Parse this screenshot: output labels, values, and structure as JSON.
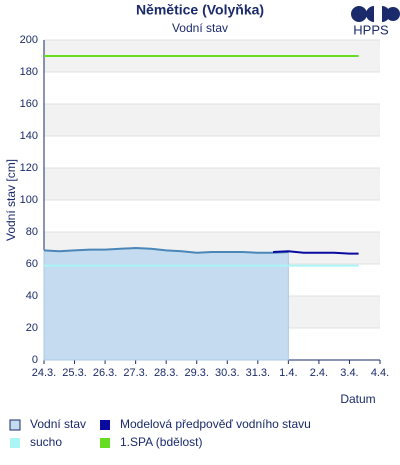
{
  "chart_data": {
    "type": "line",
    "title": "Němětice (Volyňka)",
    "subtitle": "Vodní stav",
    "logo_text": "HPPS",
    "y_label": "Vodní stav [cm]",
    "x_label": "Datum",
    "xlim": [
      0,
      11
    ],
    "xticks": [
      {
        "value": 0,
        "label": "24.3."
      },
      {
        "value": 1,
        "label": "25.3."
      },
      {
        "value": 2,
        "label": "26.3."
      },
      {
        "value": 3,
        "label": "27.3."
      },
      {
        "value": 4,
        "label": "28.3."
      },
      {
        "value": 5,
        "label": "29.3."
      },
      {
        "value": 6,
        "label": "30.3."
      },
      {
        "value": 7,
        "label": "31.3."
      },
      {
        "value": 8,
        "label": "1.4."
      },
      {
        "value": 9,
        "label": "2.4."
      },
      {
        "value": 10,
        "label": "3.4."
      },
      {
        "value": 11,
        "label": "4.4."
      }
    ],
    "ylim": [
      0,
      200
    ],
    "yticks": [
      0,
      20,
      40,
      60,
      80,
      100,
      120,
      140,
      160,
      180,
      200
    ],
    "grid": true,
    "series": [
      {
        "name": "Vodní stav",
        "color": "#4a86b8",
        "fill": "#c5dcf0",
        "area": true,
        "x": [
          0,
          0.5,
          1,
          1.5,
          2,
          2.5,
          3,
          3.5,
          4,
          4.5,
          5,
          5.5,
          6,
          6.5,
          7,
          7.5,
          8
        ],
        "values": [
          68.5,
          68,
          68.5,
          69,
          69,
          69.5,
          70,
          69.5,
          68.5,
          68,
          67,
          67.5,
          67.5,
          67.5,
          67,
          67,
          67.5
        ]
      },
      {
        "name": "Modelová předpověď vodního stavu",
        "color": "#0a0aa0",
        "x": [
          7.5,
          8,
          8.5,
          9,
          9.5,
          10,
          10.3
        ],
        "values": [
          67.5,
          68,
          67,
          67,
          67,
          66.5,
          66.5
        ]
      },
      {
        "name": "sucho",
        "color": "#aaf5f5",
        "x": [
          0,
          10.3
        ],
        "values": [
          59,
          59
        ]
      },
      {
        "name": "1.SPA (bdělost)",
        "color": "#66dd22",
        "x": [
          0,
          10.3
        ],
        "values": [
          190,
          190
        ]
      }
    ]
  }
}
